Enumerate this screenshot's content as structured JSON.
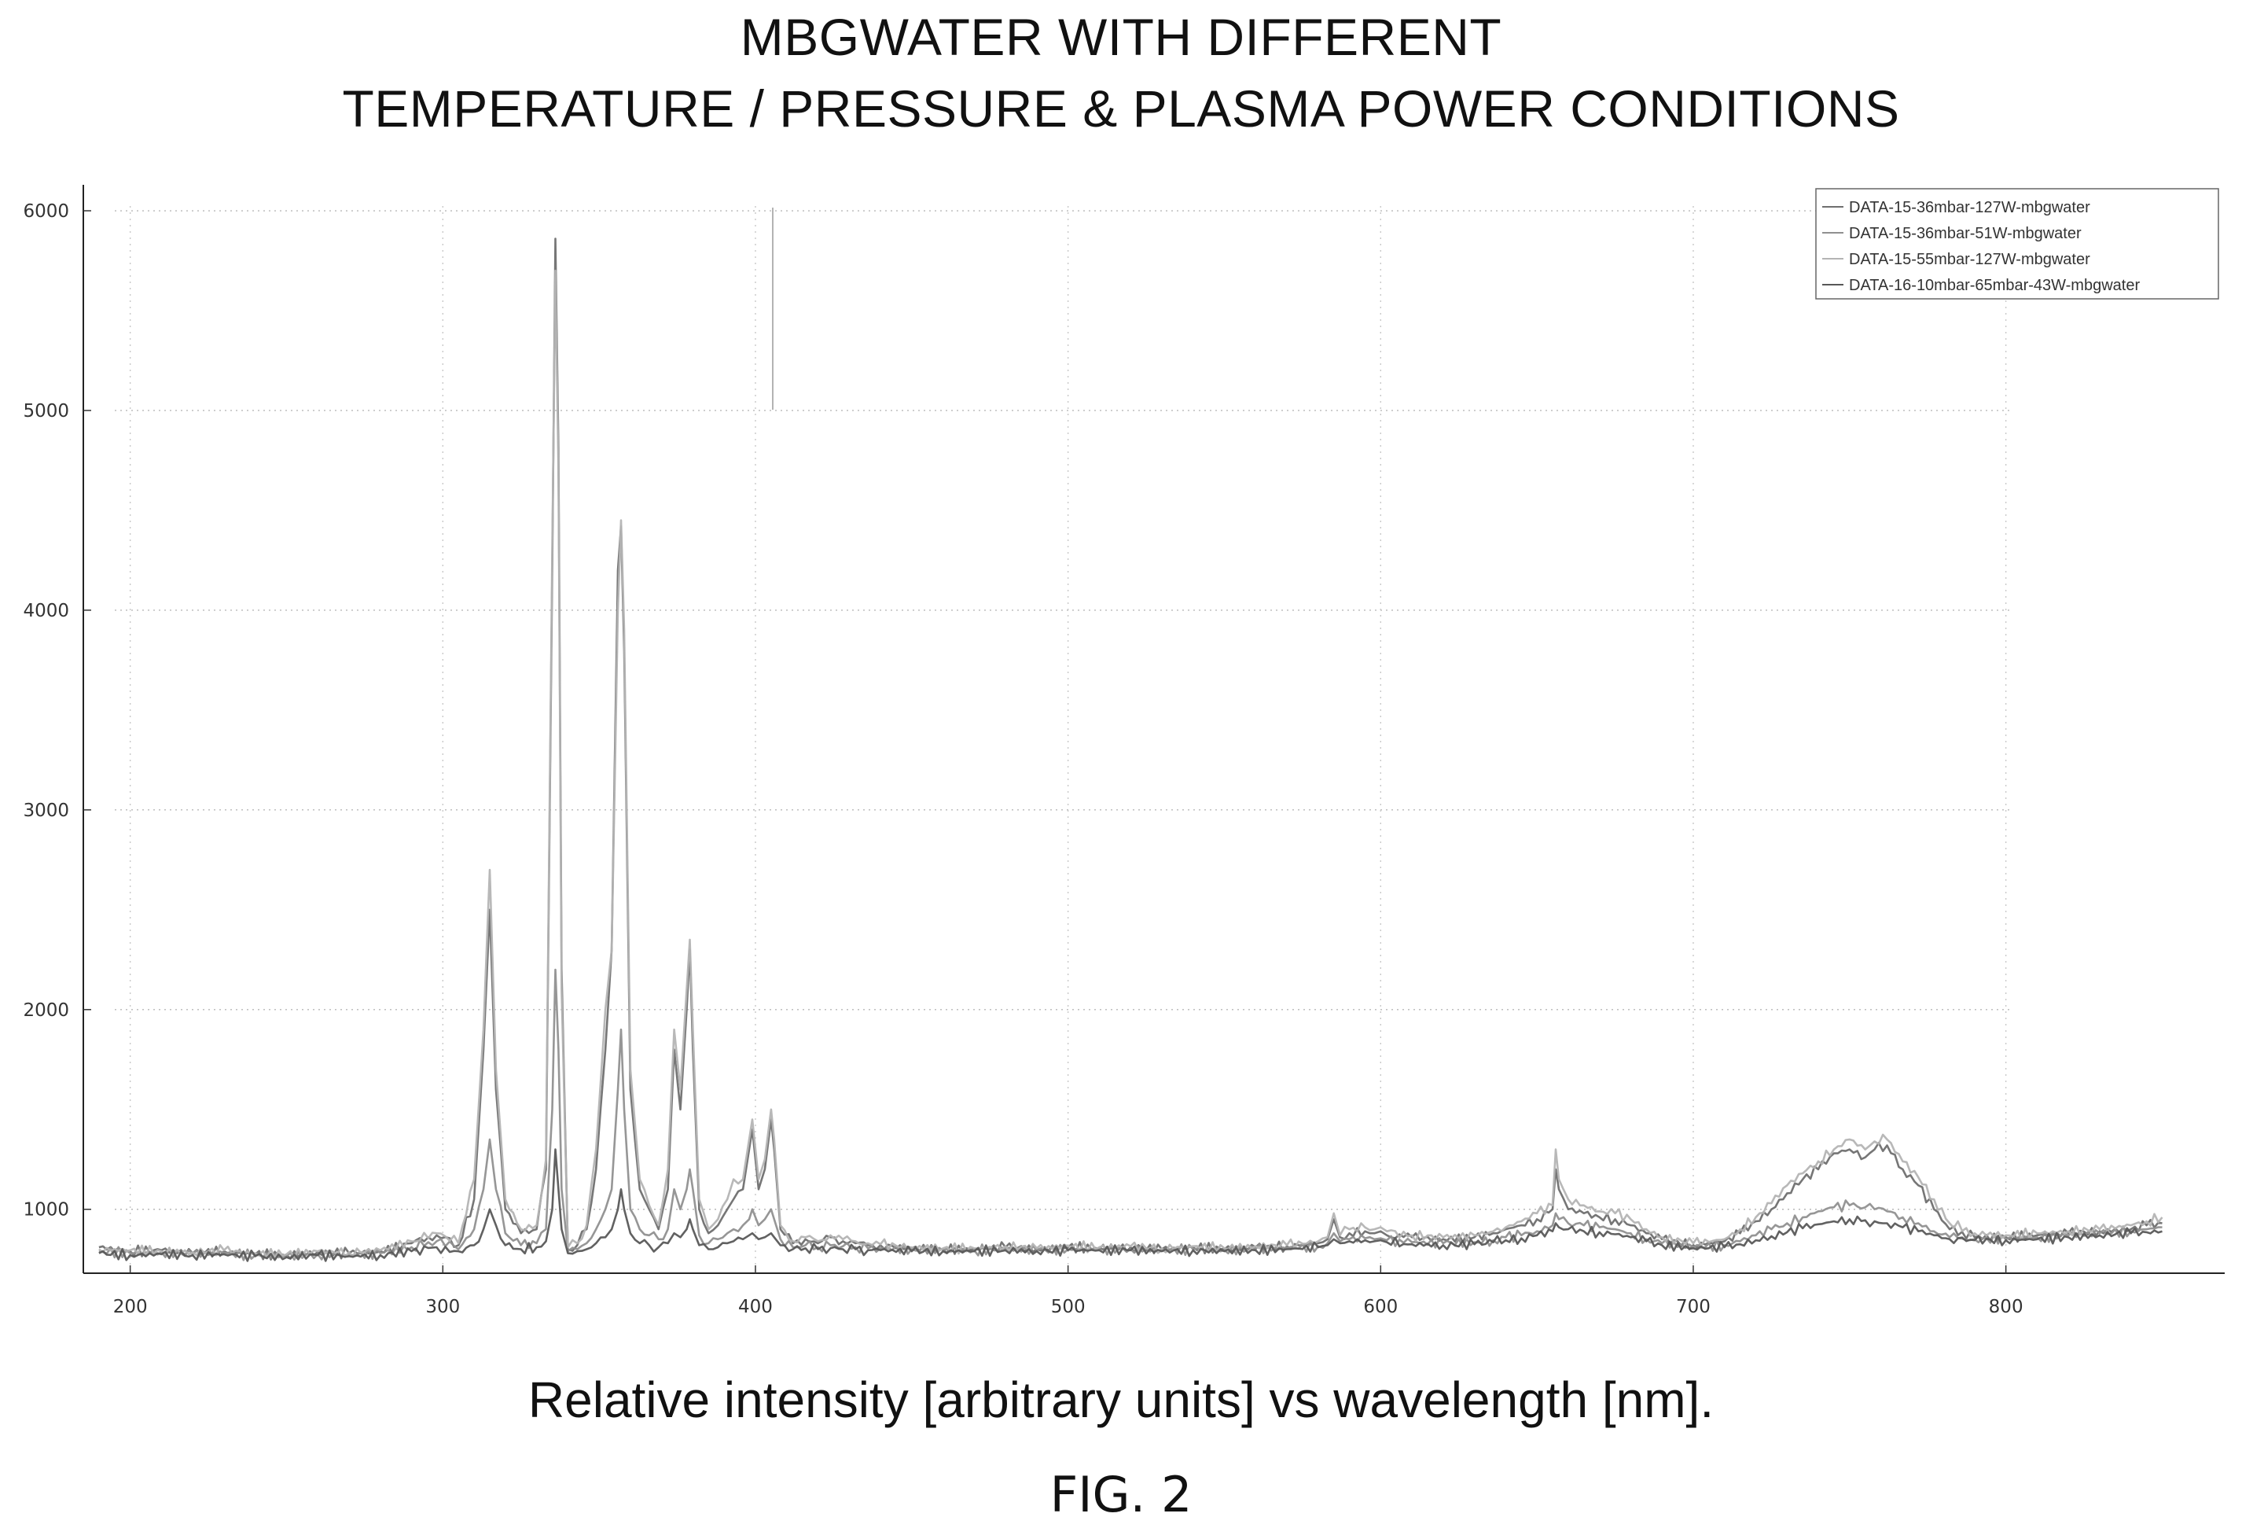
{
  "chart_data": {
    "type": "line",
    "title": [
      "MBGWATER WITH DIFFERENT",
      "TEMPERATURE / PRESSURE & PLASMA POWER CONDITIONS"
    ],
    "xlabel": "",
    "ylabel": "",
    "caption": "Relative intensity [arbitrary units] vs wavelength [nm].",
    "xlim": [
      185,
      870
    ],
    "ylim": [
      680,
      6130
    ],
    "x_ticks": [
      200,
      300,
      400,
      500,
      600,
      700,
      800
    ],
    "y_ticks": [
      1000,
      2000,
      3000,
      4000,
      5000,
      6000
    ],
    "grid": true,
    "legend_position": "top-right",
    "series": [
      {
        "name": "DATA-15-36mbar-127W-mbgwater",
        "color": "#6f6f6f",
        "x": [
          190,
          200,
          210,
          220,
          230,
          240,
          250,
          260,
          270,
          280,
          290,
          298,
          305,
          310,
          313,
          315,
          317,
          320,
          325,
          330,
          333,
          335,
          336,
          337,
          338,
          340,
          343,
          346,
          349,
          352,
          354,
          356,
          357,
          358,
          360,
          363,
          366,
          369,
          372,
          374,
          376,
          378,
          379,
          380,
          382,
          385,
          388,
          391,
          393,
          396,
          398,
          399,
          401,
          403,
          405,
          406,
          408,
          412,
          416,
          420,
          424,
          428,
          432,
          436,
          440,
          450,
          460,
          470,
          480,
          490,
          500,
          510,
          520,
          530,
          540,
          550,
          560,
          570,
          580,
          583,
          585,
          587,
          590,
          595,
          598,
          600,
          602,
          610,
          620,
          630,
          636,
          640,
          645,
          650,
          655,
          656,
          657,
          660,
          665,
          670,
          675,
          680,
          685,
          690,
          700,
          710,
          715,
          720,
          725,
          730,
          735,
          740,
          745,
          750,
          755,
          758,
          762,
          767,
          772,
          777,
          782,
          790,
          800,
          810,
          820,
          830,
          840,
          845,
          850
        ],
        "y": [
          810,
          790,
          795,
          780,
          790,
          775,
          770,
          785,
          780,
          790,
          830,
          870,
          820,
          1050,
          1800,
          2500,
          1600,
          1000,
          880,
          900,
          1200,
          4200,
          5860,
          4800,
          2200,
          800,
          820,
          900,
          1200,
          1800,
          2300,
          4200,
          4420,
          3800,
          1600,
          1100,
          1000,
          900,
          1100,
          1800,
          1500,
          2000,
          2300,
          1800,
          1000,
          880,
          920,
          1000,
          1050,
          1100,
          1300,
          1400,
          1100,
          1200,
          1450,
          1300,
          900,
          830,
          850,
          830,
          860,
          840,
          830,
          820,
          820,
          805,
          800,
          800,
          810,
          800,
          810,
          805,
          810,
          800,
          810,
          800,
          810,
          815,
          830,
          850,
          950,
          860,
          880,
          890,
          880,
          890,
          870,
          860,
          850,
          860,
          880,
          900,
          920,
          950,
          1000,
          1200,
          1100,
          1000,
          980,
          960,
          950,
          920,
          880,
          850,
          820,
          840,
          880,
          940,
          1000,
          1080,
          1150,
          1200,
          1280,
          1300,
          1260,
          1300,
          1320,
          1200,
          1120,
          1000,
          900,
          860,
          860,
          870,
          880,
          890,
          900,
          920,
          930
        ],
        "label": ""
      },
      {
        "name": "DATA-15-36mbar-51W-mbgwater",
        "color": "#909090",
        "x": [
          190,
          200,
          210,
          220,
          230,
          240,
          250,
          260,
          270,
          280,
          290,
          298,
          305,
          310,
          313,
          315,
          317,
          320,
          325,
          330,
          333,
          335,
          336,
          337,
          338,
          340,
          343,
          346,
          349,
          352,
          354,
          356,
          357,
          358,
          360,
          363,
          366,
          369,
          372,
          374,
          376,
          378,
          379,
          380,
          382,
          385,
          388,
          391,
          393,
          396,
          398,
          399,
          401,
          403,
          405,
          406,
          408,
          412,
          416,
          420,
          424,
          428,
          432,
          436,
          440,
          450,
          460,
          470,
          480,
          490,
          500,
          510,
          520,
          530,
          540,
          550,
          560,
          570,
          580,
          583,
          585,
          587,
          590,
          595,
          598,
          600,
          602,
          610,
          620,
          630,
          636,
          640,
          645,
          650,
          655,
          656,
          657,
          660,
          665,
          670,
          675,
          680,
          685,
          690,
          700,
          710,
          715,
          720,
          725,
          730,
          735,
          740,
          745,
          750,
          755,
          758,
          762,
          767,
          772,
          777,
          782,
          790,
          800,
          810,
          820,
          830,
          840,
          845,
          850
        ],
        "y": [
          790,
          780,
          785,
          775,
          780,
          770,
          765,
          775,
          770,
          780,
          810,
          840,
          800,
          900,
          1100,
          1350,
          1100,
          880,
          820,
          830,
          900,
          1500,
          2200,
          1800,
          1100,
          790,
          800,
          830,
          900,
          1000,
          1100,
          1600,
          1900,
          1500,
          1000,
          900,
          870,
          850,
          900,
          1100,
          1000,
          1100,
          1200,
          1100,
          870,
          830,
          850,
          880,
          900,
          920,
          950,
          1000,
          920,
          950,
          1000,
          950,
          850,
          810,
          820,
          810,
          820,
          815,
          810,
          805,
          805,
          800,
          795,
          795,
          800,
          795,
          800,
          800,
          800,
          795,
          800,
          795,
          800,
          805,
          815,
          830,
          880,
          840,
          850,
          855,
          850,
          855,
          845,
          835,
          830,
          835,
          845,
          860,
          870,
          890,
          920,
          980,
          950,
          930,
          920,
          910,
          900,
          880,
          850,
          830,
          810,
          820,
          840,
          870,
          900,
          930,
          960,
          990,
          1010,
          1020,
          1010,
          1000,
          990,
          960,
          930,
          890,
          860,
          850,
          850,
          860,
          870,
          880,
          890,
          900,
          910
        ],
        "label": ""
      },
      {
        "name": "DATA-15-55mbar-127W-mbgwater",
        "color": "#b4b4b4",
        "x": [
          190,
          200,
          210,
          220,
          230,
          240,
          250,
          260,
          270,
          280,
          290,
          298,
          305,
          310,
          313,
          315,
          317,
          320,
          325,
          330,
          333,
          335,
          336,
          337,
          338,
          340,
          343,
          346,
          349,
          352,
          354,
          356,
          357,
          358,
          360,
          363,
          366,
          369,
          372,
          374,
          376,
          378,
          379,
          380,
          382,
          385,
          388,
          391,
          393,
          396,
          398,
          399,
          401,
          403,
          405,
          406,
          408,
          412,
          416,
          420,
          424,
          428,
          432,
          436,
          440,
          450,
          460,
          470,
          480,
          490,
          500,
          510,
          520,
          530,
          540,
          550,
          560,
          570,
          580,
          583,
          585,
          587,
          590,
          595,
          598,
          600,
          602,
          610,
          620,
          630,
          636,
          640,
          645,
          650,
          655,
          656,
          657,
          660,
          665,
          670,
          675,
          680,
          685,
          690,
          700,
          710,
          715,
          720,
          725,
          730,
          735,
          740,
          745,
          750,
          755,
          758,
          762,
          767,
          772,
          777,
          782,
          790,
          800,
          810,
          820,
          830,
          840,
          845,
          850
        ],
        "y": [
          800,
          795,
          790,
          785,
          795,
          780,
          775,
          790,
          785,
          795,
          840,
          880,
          830,
          1150,
          1900,
          2700,
          1700,
          1050,
          900,
          920,
          1250,
          4300,
          5700,
          4700,
          2100,
          810,
          830,
          920,
          1300,
          2000,
          2300,
          4000,
          4450,
          3900,
          1700,
          1150,
          1020,
          920,
          1200,
          1900,
          1600,
          2100,
          2350,
          1900,
          1050,
          900,
          950,
          1050,
          1150,
          1150,
          1350,
          1450,
          1150,
          1250,
          1500,
          1350,
          920,
          840,
          860,
          840,
          870,
          850,
          840,
          830,
          825,
          810,
          805,
          805,
          815,
          805,
          815,
          810,
          815,
          805,
          815,
          805,
          815,
          820,
          840,
          860,
          980,
          870,
          900,
          910,
          900,
          910,
          890,
          870,
          860,
          870,
          890,
          910,
          940,
          980,
          1020,
          1300,
          1150,
          1050,
          1020,
          990,
          980,
          950,
          900,
          860,
          830,
          850,
          900,
          960,
          1030,
          1120,
          1180,
          1240,
          1300,
          1350,
          1300,
          1340,
          1350,
          1240,
          1160,
          1050,
          930,
          880,
          870,
          880,
          890,
          900,
          920,
          940,
          960
        ],
        "label": ""
      },
      {
        "name": "DATA-16-10mbar-65mbar-43W-mbgwater",
        "color": "#585858",
        "x": [
          190,
          200,
          210,
          220,
          230,
          240,
          250,
          260,
          270,
          280,
          290,
          298,
          305,
          310,
          313,
          315,
          317,
          320,
          325,
          330,
          333,
          335,
          336,
          337,
          338,
          340,
          343,
          346,
          349,
          352,
          354,
          356,
          357,
          358,
          360,
          363,
          366,
          369,
          372,
          374,
          376,
          378,
          379,
          380,
          382,
          385,
          388,
          391,
          393,
          396,
          398,
          399,
          401,
          403,
          405,
          406,
          408,
          412,
          416,
          420,
          424,
          428,
          432,
          436,
          440,
          450,
          460,
          470,
          480,
          490,
          500,
          510,
          520,
          530,
          540,
          550,
          560,
          570,
          580,
          583,
          585,
          587,
          590,
          595,
          598,
          600,
          602,
          610,
          620,
          630,
          636,
          640,
          645,
          650,
          655,
          656,
          657,
          660,
          665,
          670,
          675,
          680,
          685,
          690,
          700,
          710,
          715,
          720,
          725,
          730,
          735,
          740,
          745,
          750,
          755,
          758,
          762,
          767,
          772,
          777,
          782,
          790,
          800,
          810,
          820,
          830,
          840,
          845,
          850
        ],
        "y": [
          780,
          770,
          775,
          770,
          775,
          765,
          760,
          770,
          765,
          770,
          790,
          810,
          790,
          820,
          900,
          1000,
          920,
          820,
          800,
          810,
          840,
          1000,
          1300,
          1100,
          900,
          780,
          790,
          800,
          830,
          860,
          900,
          1000,
          1100,
          1000,
          880,
          830,
          820,
          810,
          830,
          880,
          860,
          900,
          950,
          900,
          820,
          800,
          810,
          830,
          840,
          850,
          870,
          880,
          850,
          860,
          880,
          860,
          820,
          800,
          805,
          800,
          805,
          800,
          800,
          795,
          795,
          790,
          790,
          790,
          795,
          790,
          795,
          795,
          795,
          790,
          795,
          790,
          795,
          800,
          810,
          820,
          850,
          830,
          840,
          845,
          840,
          845,
          835,
          825,
          820,
          825,
          835,
          845,
          855,
          870,
          890,
          930,
          910,
          900,
          890,
          885,
          875,
          860,
          840,
          820,
          805,
          810,
          825,
          845,
          865,
          885,
          905,
          925,
          940,
          950,
          945,
          940,
          930,
          910,
          890,
          870,
          850,
          845,
          845,
          850,
          860,
          870,
          880,
          885,
          890
        ],
        "label": ""
      }
    ]
  },
  "caption": {
    "text": "Relative intensity [arbitrary units] vs wavelength [nm].",
    "figure_label": "FIG. 2"
  }
}
